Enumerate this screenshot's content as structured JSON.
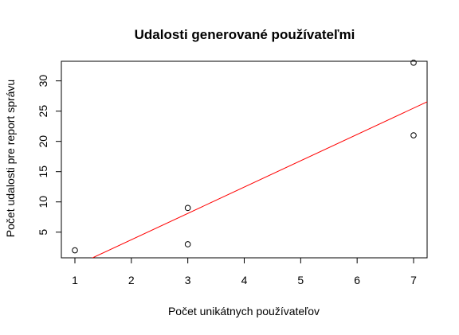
{
  "chart_data": {
    "type": "scatter",
    "title": "Udalosti generované používateľmi",
    "xlabel": "Počet unikátnych používateľov",
    "ylabel": "Počet udalosti pre report správu",
    "xlim": [
      0.76,
      7.24
    ],
    "ylim": [
      0.76,
      33.24
    ],
    "x_ticks": [
      "1",
      "2",
      "3",
      "4",
      "5",
      "6",
      "7"
    ],
    "y_ticks": [
      "5",
      "10",
      "15",
      "20",
      "25",
      "30"
    ],
    "points": [
      {
        "x": 1,
        "y": 2
      },
      {
        "x": 3,
        "y": 3
      },
      {
        "x": 3,
        "y": 9
      },
      {
        "x": 7,
        "y": 21
      },
      {
        "x": 7,
        "y": 33
      }
    ],
    "trendline": {
      "intercept": -4.95,
      "slope": 4.35,
      "color": "#ff0000"
    },
    "point_color": "#000000",
    "grid": false,
    "legend": "none"
  }
}
